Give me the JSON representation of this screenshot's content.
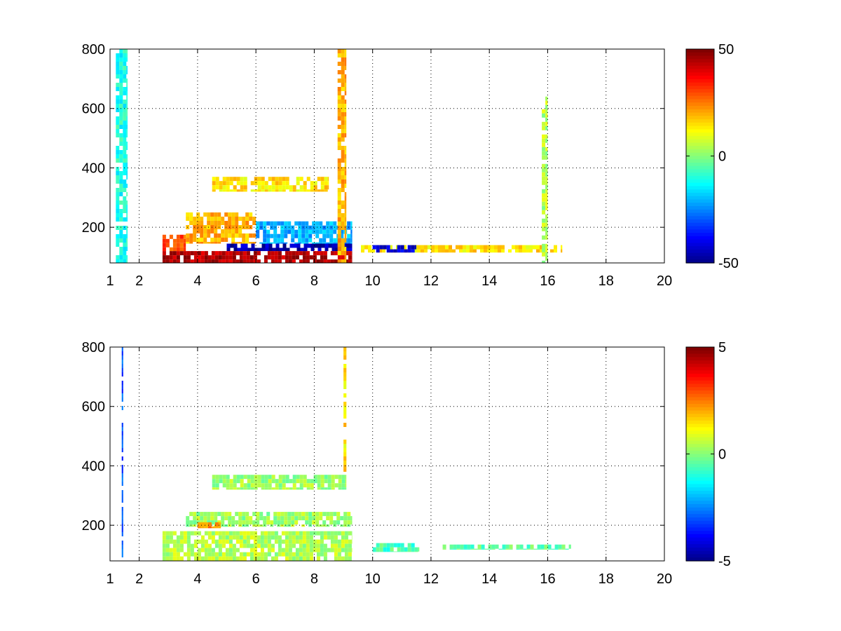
{
  "chart_data": [
    {
      "type": "heatmap",
      "title": "",
      "xlabel": "",
      "ylabel": "",
      "x_axis": {
        "range": [
          1,
          20
        ],
        "ticks": [
          1,
          2,
          4,
          6,
          8,
          10,
          12,
          14,
          16,
          18,
          20
        ]
      },
      "y_axis": {
        "range": [
          80,
          800
        ],
        "ticks": [
          200,
          400,
          600,
          800
        ]
      },
      "grid": true,
      "colorbar": {
        "colormap": "jet",
        "range": [
          -50,
          50
        ],
        "ticks": [
          50,
          0,
          -50
        ]
      },
      "features": [
        {
          "x": [
            2.8,
            9.3
          ],
          "y": [
            80,
            120
          ],
          "value": 45
        },
        {
          "x": [
            5.0,
            9.3
          ],
          "y": [
            120,
            145
          ],
          "value": -45
        },
        {
          "x": [
            2.8,
            3.6
          ],
          "y": [
            120,
            175
          ],
          "value": 30
        },
        {
          "x": [
            3.6,
            6.0
          ],
          "y": [
            145,
            250
          ],
          "value": 20
        },
        {
          "x": [
            6.0,
            9.3
          ],
          "y": [
            145,
            220
          ],
          "value": -20
        },
        {
          "x": [
            4.5,
            8.5
          ],
          "y": [
            320,
            370
          ],
          "value": 15
        },
        {
          "x": [
            9.6,
            16.5
          ],
          "y": [
            115,
            140
          ],
          "value": 15
        },
        {
          "x": [
            10.0,
            11.5
          ],
          "y": [
            115,
            140
          ],
          "value": -40
        },
        {
          "x": [
            15.8,
            16.0
          ],
          "y": [
            80,
            640
          ],
          "value": 5
        },
        {
          "x": [
            8.8,
            9.1
          ],
          "y": [
            80,
            800
          ],
          "value": 20
        },
        {
          "x": [
            1.2,
            1.6
          ],
          "y": [
            80,
            800
          ],
          "value": -10
        }
      ]
    },
    {
      "type": "heatmap",
      "title": "",
      "xlabel": "",
      "ylabel": "",
      "x_axis": {
        "range": [
          1,
          20
        ],
        "ticks": [
          1,
          2,
          4,
          6,
          8,
          10,
          12,
          14,
          16,
          18,
          20
        ]
      },
      "y_axis": {
        "range": [
          80,
          800
        ],
        "ticks": [
          200,
          400,
          600,
          800
        ]
      },
      "grid": true,
      "colorbar": {
        "colormap": "jet",
        "range": [
          -5,
          5
        ],
        "ticks": [
          5,
          0,
          -5
        ]
      },
      "features": [
        {
          "x": [
            2.8,
            9.3
          ],
          "y": [
            80,
            180
          ],
          "value": 0.5
        },
        {
          "x": [
            3.6,
            9.3
          ],
          "y": [
            195,
            245
          ],
          "value": 0.3
        },
        {
          "x": [
            4.5,
            9.1
          ],
          "y": [
            320,
            370
          ],
          "value": 0.3
        },
        {
          "x": [
            4.0,
            4.8
          ],
          "y": [
            190,
            210
          ],
          "value": 2.5
        },
        {
          "x": [
            9.0,
            9.1
          ],
          "y": [
            380,
            800
          ],
          "value": 1.5
        },
        {
          "x": [
            1.4,
            1.45
          ],
          "y": [
            80,
            800
          ],
          "value": -3
        },
        {
          "x": [
            10.0,
            11.6
          ],
          "y": [
            110,
            140
          ],
          "value": -0.5
        },
        {
          "x": [
            12.4,
            16.8
          ],
          "y": [
            118,
            135
          ],
          "value": -0.3
        }
      ]
    }
  ]
}
